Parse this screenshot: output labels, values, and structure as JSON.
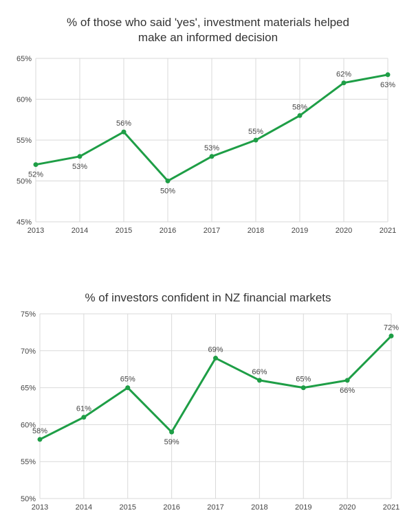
{
  "colors": {
    "line": "#1e9e46",
    "grid": "#d9d9d9",
    "text": "#444444"
  },
  "chart_data": [
    {
      "type": "line",
      "title_lines": [
        "% of those who said 'yes', investment materials helped",
        "make an informed decision"
      ],
      "categories": [
        "2013",
        "2014",
        "2015",
        "2016",
        "2017",
        "2018",
        "2019",
        "2020",
        "2021"
      ],
      "values": [
        52,
        53,
        56,
        50,
        53,
        55,
        58,
        62,
        63
      ],
      "value_labels": [
        "52%",
        "53%",
        "56%",
        "50%",
        "53%",
        "55%",
        "58%",
        "62%",
        "63%"
      ],
      "label_positions": [
        "below",
        "below",
        "above",
        "below",
        "above",
        "above",
        "above",
        "above",
        "below"
      ],
      "ylim": [
        45,
        65
      ],
      "yticks": [
        45,
        50,
        55,
        60,
        65
      ],
      "ytick_labels": [
        "45%",
        "50%",
        "55%",
        "60%",
        "65%"
      ],
      "xlabel": "",
      "ylabel": "",
      "grid": true,
      "legend": "none"
    },
    {
      "type": "line",
      "title_lines": [
        "% of investors confident in NZ financial markets"
      ],
      "categories": [
        "2013",
        "2014",
        "2015",
        "2016",
        "2017",
        "2018",
        "2019",
        "2020",
        "2021"
      ],
      "values": [
        58,
        61,
        65,
        59,
        69,
        66,
        65,
        66,
        72
      ],
      "value_labels": [
        "58%",
        "61%",
        "65%",
        "59%",
        "69%",
        "66%",
        "65%",
        "66%",
        "72%"
      ],
      "label_positions": [
        "above",
        "above",
        "above",
        "below",
        "above",
        "above",
        "above",
        "below",
        "above"
      ],
      "ylim": [
        50,
        75
      ],
      "yticks": [
        50,
        55,
        60,
        65,
        70,
        75
      ],
      "ytick_labels": [
        "50%",
        "55%",
        "60%",
        "65%",
        "70%",
        "75%"
      ],
      "xlabel": "",
      "ylabel": "",
      "grid": true,
      "legend": "none"
    }
  ]
}
